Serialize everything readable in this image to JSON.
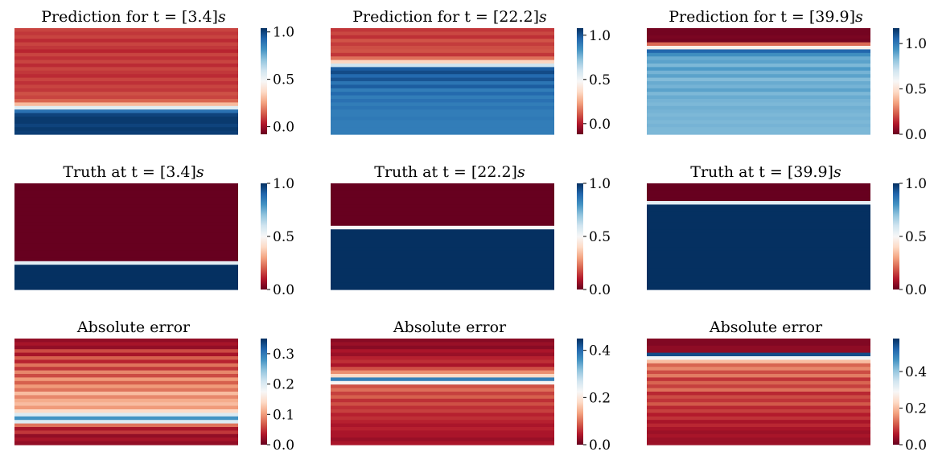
{
  "colormap": {
    "name": "RdBu",
    "stops": [
      "#67001f",
      "#b2182b",
      "#d6604d",
      "#f4a582",
      "#fddbc7",
      "#f7f7f7",
      "#d1e5f0",
      "#92c5de",
      "#4393c3",
      "#2166ac",
      "#053061"
    ]
  },
  "chart_data": [
    {
      "type": "heatmap",
      "title_prefix": "Prediction for t = [3.4]",
      "title_var": "s",
      "colorbar": {
        "ticks": [
          0.0,
          0.5,
          1.0
        ],
        "tick_labels": [
          "0.0",
          "0.5",
          "1.0"
        ],
        "vmin": -0.08,
        "vmax": 1.04
      },
      "rows": [
        0.1,
        0.08,
        0.1,
        0.06,
        0.1,
        0.08,
        0.05,
        0.1,
        0.07,
        0.1,
        0.06,
        0.1,
        0.08,
        0.06,
        0.1,
        0.07,
        0.1,
        0.08,
        0.12,
        0.1,
        0.15,
        0.3,
        0.55,
        0.9,
        1.0,
        1.02,
        1.02,
        1.0,
        1.02,
        1.01
      ]
    },
    {
      "type": "heatmap",
      "title_prefix": "Prediction for t = [22.2]",
      "title_var": "s",
      "colorbar": {
        "ticks": [
          0.0,
          0.5,
          1.0
        ],
        "tick_labels": [
          "0.0",
          "0.5",
          "1.0"
        ],
        "vmin": -0.12,
        "vmax": 1.08
      },
      "rows": [
        0.05,
        0.08,
        0.04,
        0.1,
        0.06,
        0.09,
        0.1,
        0.05,
        0.15,
        0.35,
        0.6,
        0.98,
        1.02,
        0.95,
        1.0,
        0.92,
        0.98,
        0.9,
        0.95,
        0.9,
        0.93,
        0.9,
        0.92,
        0.9,
        0.9,
        0.91,
        0.9,
        0.9,
        0.9,
        0.9
      ]
    },
    {
      "type": "heatmap",
      "title_prefix": "Prediction for t = [39.9]",
      "title_var": "s",
      "colorbar": {
        "ticks": [
          0.0,
          0.5,
          1.0
        ],
        "tick_labels": [
          "0.0",
          "0.5",
          "1.0"
        ],
        "vmin": 0.0,
        "vmax": 1.17
      },
      "rows": [
        0.02,
        0.02,
        0.03,
        0.02,
        0.25,
        0.55,
        1.05,
        0.95,
        0.88,
        0.9,
        0.85,
        0.92,
        0.86,
        0.9,
        0.84,
        0.88,
        0.86,
        0.9,
        0.85,
        0.88,
        0.86,
        0.85,
        0.87,
        0.86,
        0.85,
        0.86,
        0.85,
        0.86,
        0.85,
        0.85
      ]
    },
    {
      "type": "heatmap",
      "title_prefix": "Truth at t = [3.4]",
      "title_var": "s",
      "colorbar": {
        "ticks": [
          0.0,
          0.5,
          1.0
        ],
        "tick_labels": [
          "0.0",
          "0.5",
          "1.0"
        ],
        "vmin": 0.0,
        "vmax": 1.0
      },
      "rows": [
        0,
        0,
        0,
        0,
        0,
        0,
        0,
        0,
        0,
        0,
        0,
        0,
        0,
        0,
        0,
        0,
        0,
        0,
        0,
        0,
        0,
        0.0,
        0.55,
        1,
        1,
        1,
        1,
        1,
        1,
        1
      ]
    },
    {
      "type": "heatmap",
      "title_prefix": "Truth at t = [22.2]",
      "title_var": "s",
      "colorbar": {
        "ticks": [
          0.0,
          0.5,
          1.0
        ],
        "tick_labels": [
          "0.0",
          "0.5",
          "1.0"
        ],
        "vmin": 0.0,
        "vmax": 1.0
      },
      "rows": [
        0,
        0,
        0,
        0,
        0,
        0,
        0,
        0,
        0,
        0,
        0,
        0,
        0.5,
        1,
        1,
        1,
        1,
        1,
        1,
        1,
        1,
        1,
        1,
        1,
        1,
        1,
        1,
        1,
        1,
        1
      ]
    },
    {
      "type": "heatmap",
      "title_prefix": "Truth at t = [39.9]",
      "title_var": "s",
      "colorbar": {
        "ticks": [
          0.0,
          0.5,
          1.0
        ],
        "tick_labels": [
          "0.0",
          "0.5",
          "1.0"
        ],
        "vmin": 0.0,
        "vmax": 1.0
      },
      "rows": [
        0,
        0,
        0,
        0,
        0,
        0.55,
        1,
        1,
        1,
        1,
        1,
        1,
        1,
        1,
        1,
        1,
        1,
        1,
        1,
        1,
        1,
        1,
        1,
        1,
        1,
        1,
        1,
        1,
        1,
        1
      ]
    },
    {
      "type": "heatmap",
      "title_prefix": "Absolute error",
      "title_var": "",
      "colorbar": {
        "ticks": [
          0.0,
          0.1,
          0.2,
          0.3
        ],
        "tick_labels": [
          "0.0",
          "0.1",
          "0.2",
          "0.3"
        ],
        "vmin": 0.0,
        "vmax": 0.35
      },
      "rows": [
        0.02,
        0.03,
        0.02,
        0.06,
        0.03,
        0.07,
        0.04,
        0.08,
        0.05,
        0.09,
        0.06,
        0.1,
        0.07,
        0.1,
        0.08,
        0.12,
        0.09,
        0.11,
        0.12,
        0.1,
        0.14,
        0.2,
        0.28,
        0.2,
        0.08,
        0.03,
        0.05,
        0.02,
        0.03,
        0.02
      ]
    },
    {
      "type": "heatmap",
      "title_prefix": "Absolute error",
      "title_var": "",
      "colorbar": {
        "ticks": [
          0.0,
          0.2,
          0.4
        ],
        "tick_labels": [
          "0.0",
          "0.2",
          "0.4"
        ],
        "vmin": 0.0,
        "vmax": 0.45
      },
      "rows": [
        0.02,
        0.03,
        0.02,
        0.04,
        0.03,
        0.05,
        0.06,
        0.04,
        0.08,
        0.12,
        0.18,
        0.38,
        0.22,
        0.08,
        0.1,
        0.07,
        0.09,
        0.06,
        0.08,
        0.06,
        0.07,
        0.05,
        0.06,
        0.05,
        0.04,
        0.05,
        0.04,
        0.04,
        0.03,
        0.04
      ]
    },
    {
      "type": "heatmap",
      "title_prefix": "Absolute error",
      "title_var": "",
      "colorbar": {
        "ticks": [
          0.0,
          0.2,
          0.4
        ],
        "tick_labels": [
          "0.0",
          "0.2",
          "0.4"
        ],
        "vmin": 0.0,
        "vmax": 0.58
      },
      "rows": [
        0.02,
        0.02,
        0.03,
        0.03,
        0.55,
        0.3,
        0.2,
        0.12,
        0.15,
        0.1,
        0.14,
        0.08,
        0.12,
        0.09,
        0.13,
        0.07,
        0.1,
        0.08,
        0.11,
        0.07,
        0.09,
        0.06,
        0.08,
        0.05,
        0.07,
        0.05,
        0.04,
        0.05,
        0.04,
        0.04
      ]
    }
  ]
}
